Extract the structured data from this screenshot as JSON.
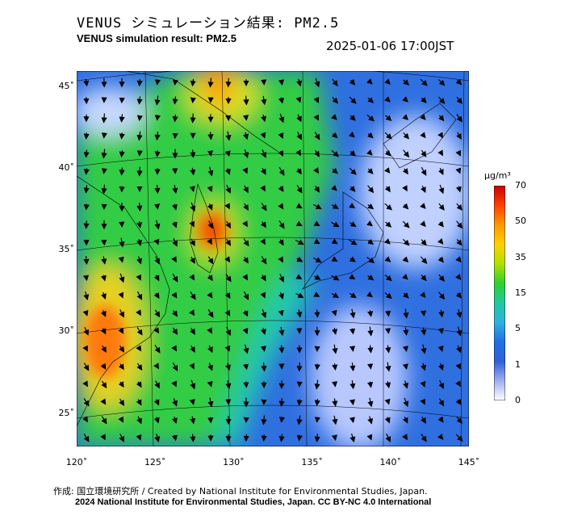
{
  "header": {
    "title_ja": "VENUS シミュレーション結果: PM2.5",
    "title_en": "VENUS simulation result: PM2.5",
    "timestamp": "2025-01-06 17:00JST"
  },
  "map": {
    "lon_range": [
      120,
      145
    ],
    "lat_range": [
      23,
      46
    ],
    "lat_ticks": [
      {
        "value": 45,
        "label": "45˚"
      },
      {
        "value": 40,
        "label": "40˚"
      },
      {
        "value": 35,
        "label": "35˚"
      },
      {
        "value": 30,
        "label": "30˚"
      },
      {
        "value": 25,
        "label": "25˚"
      }
    ],
    "lon_ticks": [
      {
        "value": 120,
        "label": "120˚"
      },
      {
        "value": 125,
        "label": "125˚"
      },
      {
        "value": 130,
        "label": "130˚"
      },
      {
        "value": 135,
        "label": "135˚"
      },
      {
        "value": 140,
        "label": "140˚"
      },
      {
        "value": 145,
        "label": "145˚"
      }
    ]
  },
  "colorbar": {
    "unit": "µg/m³",
    "ticks": [
      "70",
      "50",
      "35",
      "15",
      "5",
      "1",
      "0"
    ],
    "colors": [
      "#cc0000",
      "#ff4000",
      "#ff9900",
      "#ffd000",
      "#b0e000",
      "#30d030",
      "#20c8a0",
      "#30b0e0",
      "#2070e0",
      "#3060d8",
      "#a0b0f0",
      "#ffffff"
    ]
  },
  "credits": {
    "line1": "作成: 国立環境研究所 / Created by National Institute for Environmental Studies, Japan.",
    "line2": "2024 National Institute for Environmental Studies, Japan. CC BY-NC 4.0 International"
  }
}
